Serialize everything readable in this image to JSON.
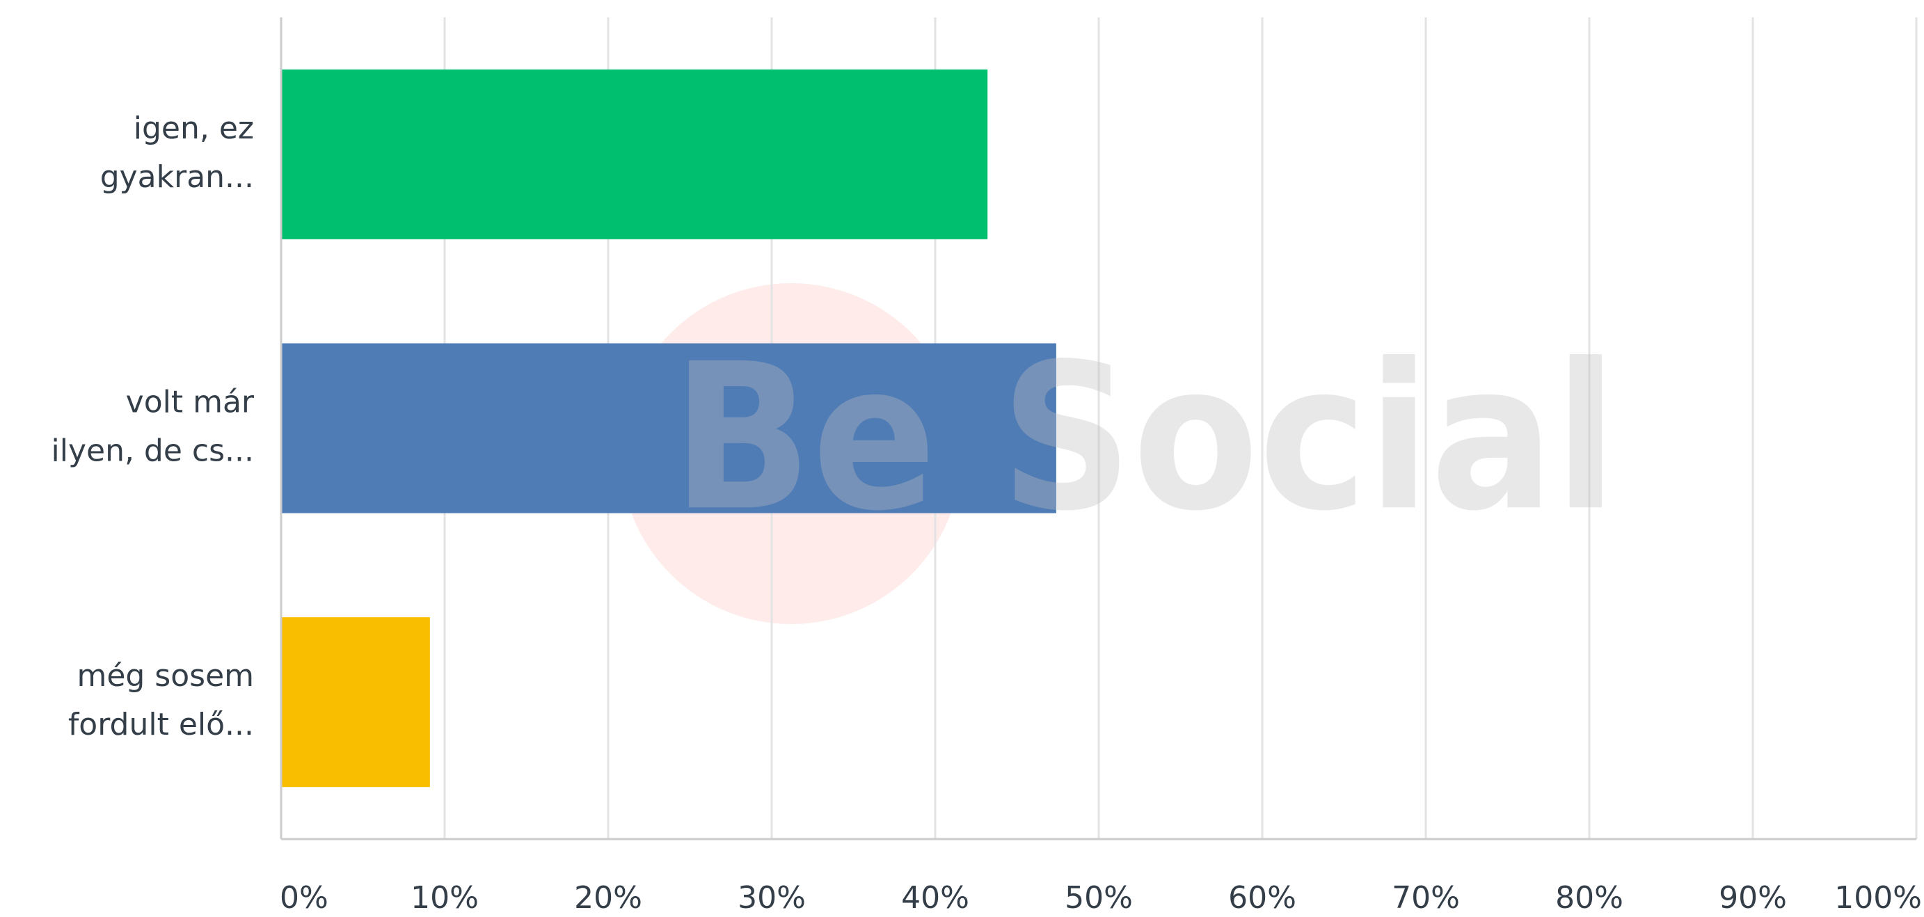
{
  "chart_data": {
    "type": "bar",
    "orientation": "horizontal",
    "categories": [
      [
        "igen, ez",
        "gyakran..."
      ],
      [
        "volt már",
        "ilyen, de cs..."
      ],
      [
        "még sosem",
        "fordult elő..."
      ]
    ],
    "series": [
      {
        "values": [
          43.2,
          47.4,
          9.1
        ],
        "colors": [
          "#00bf6f",
          "#507cb6",
          "#f9be00"
        ]
      }
    ],
    "xlim": [
      0,
      100
    ],
    "xticks": [
      {
        "value": 0,
        "label": "0%"
      },
      {
        "value": 10,
        "label": "10%"
      },
      {
        "value": 20,
        "label": "20%"
      },
      {
        "value": 30,
        "label": "30%"
      },
      {
        "value": 40,
        "label": "40%"
      },
      {
        "value": 50,
        "label": "50%"
      },
      {
        "value": 60,
        "label": "60%"
      },
      {
        "value": 70,
        "label": "70%"
      },
      {
        "value": 80,
        "label": "80%"
      },
      {
        "value": 90,
        "label": "90%"
      },
      {
        "value": 100,
        "label": "100%"
      }
    ],
    "grid": true,
    "watermark": "Be Social"
  }
}
